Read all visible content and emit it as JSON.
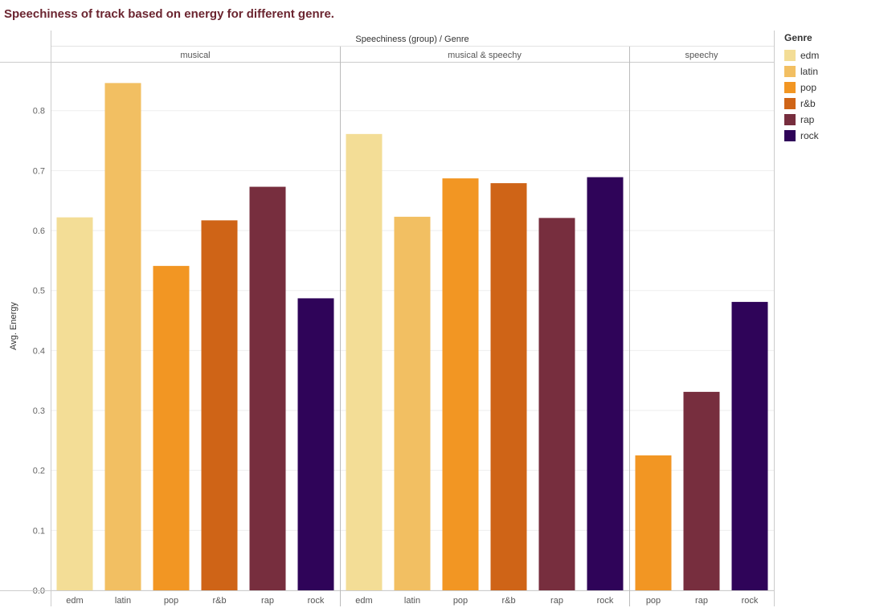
{
  "title": "Speechiness of track based on energy for different genre.",
  "chart_data": {
    "type": "bar",
    "title": "Speechiness of track based on energy for different genre.",
    "column_header": "Speechiness (group)  /  Genre",
    "ylabel": "Avg. Energy",
    "ylim": [
      0,
      0.88
    ],
    "yticks": [
      "0.0",
      "0.1",
      "0.2",
      "0.3",
      "0.4",
      "0.5",
      "0.6",
      "0.7",
      "0.8"
    ],
    "grid": true,
    "legend_position": "right",
    "groups": [
      {
        "name": "musical",
        "bars": [
          {
            "genre": "edm",
            "value": 0.622
          },
          {
            "genre": "latin",
            "value": 0.846
          },
          {
            "genre": "pop",
            "value": 0.541
          },
          {
            "genre": "r&b",
            "value": 0.617
          },
          {
            "genre": "rap",
            "value": 0.673
          },
          {
            "genre": "rock",
            "value": 0.487
          }
        ]
      },
      {
        "name": "musical & speechy",
        "bars": [
          {
            "genre": "edm",
            "value": 0.761
          },
          {
            "genre": "latin",
            "value": 0.623
          },
          {
            "genre": "pop",
            "value": 0.687
          },
          {
            "genre": "r&b",
            "value": 0.679
          },
          {
            "genre": "rap",
            "value": 0.621
          },
          {
            "genre": "rock",
            "value": 0.689
          }
        ]
      },
      {
        "name": "speechy",
        "bars": [
          {
            "genre": "pop",
            "value": 0.225
          },
          {
            "genre": "rap",
            "value": 0.331
          },
          {
            "genre": "rock",
            "value": 0.481
          }
        ]
      }
    ]
  },
  "legend": {
    "title": "Genre",
    "items": [
      {
        "label": "edm",
        "color": "#f3dd96"
      },
      {
        "label": "latin",
        "color": "#f2bf62"
      },
      {
        "label": "pop",
        "color": "#f29623"
      },
      {
        "label": "r&b",
        "color": "#cf6417"
      },
      {
        "label": "rap",
        "color": "#772e3e"
      },
      {
        "label": "rock",
        "color": "#2f0459"
      }
    ]
  }
}
